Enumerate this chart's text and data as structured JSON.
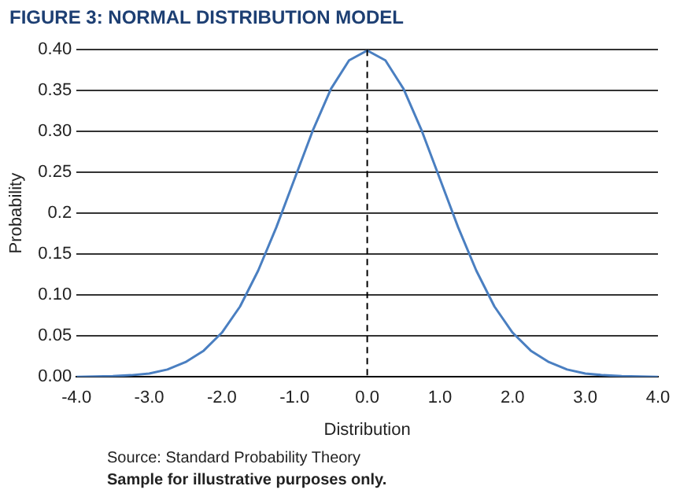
{
  "chart_data": {
    "type": "line",
    "title": "FIGURE 3: NORMAL DISTRIBUTION MODEL",
    "xlabel": "Distribution",
    "ylabel": "Probability",
    "annotations": [
      "Source: Standard Probability Theory",
      "Sample for illustrative purposes only."
    ],
    "x": [
      -4,
      -3.5,
      -3.25,
      -3,
      -2.75,
      -2.5,
      -2.25,
      -2,
      -1.75,
      -1.5,
      -1.25,
      -1,
      -0.75,
      -0.5,
      -0.25,
      0,
      0.25,
      0.5,
      0.75,
      1,
      1.25,
      1.5,
      1.75,
      2,
      2.25,
      2.5,
      2.75,
      3,
      3.25,
      3.5,
      4
    ],
    "series": [
      {
        "color": "#4a7fc1",
        "values": [
          0.0,
          0.001,
          0.002,
          0.004,
          0.009,
          0.018,
          0.032,
          0.054,
          0.086,
          0.13,
          0.183,
          0.242,
          0.301,
          0.352,
          0.387,
          0.399,
          0.387,
          0.352,
          0.301,
          0.242,
          0.183,
          0.13,
          0.086,
          0.054,
          0.032,
          0.018,
          0.009,
          0.004,
          0.002,
          0.001,
          0.0
        ]
      }
    ],
    "xlim": [
      -4,
      4
    ],
    "xticks": [
      {
        "value": -4,
        "label": "-4.0"
      },
      {
        "value": -3,
        "label": "-3.0"
      },
      {
        "value": -2,
        "label": "-2.0"
      },
      {
        "value": -1,
        "label": "-1.0"
      },
      {
        "value": 0,
        "label": "0.0"
      },
      {
        "value": 1,
        "label": "1.0"
      },
      {
        "value": 2,
        "label": "2.0"
      },
      {
        "value": 3,
        "label": "3.0"
      },
      {
        "value": 4,
        "label": "4.0"
      }
    ],
    "ylim": [
      0,
      0.4
    ],
    "yticks": [
      {
        "value": 0,
        "label": "0.00"
      },
      {
        "value": 0.05,
        "label": "0.05"
      },
      {
        "value": 0.1,
        "label": "0.10"
      },
      {
        "value": 0.15,
        "label": "0.15"
      },
      0.2,
      {
        "value": 0.25,
        "label": "0.25"
      },
      {
        "value": 0.3,
        "label": "0.30"
      },
      {
        "value": 0.35,
        "label": "0.35"
      },
      {
        "value": 0.4,
        "label": "0.40"
      }
    ],
    "grid": "y",
    "legend": false,
    "marker": "none",
    "line_style": "solid",
    "ref_lines": [
      {
        "axis": "x",
        "value": 0,
        "color": "#000000",
        "line_style": "dashed"
      }
    ]
  }
}
